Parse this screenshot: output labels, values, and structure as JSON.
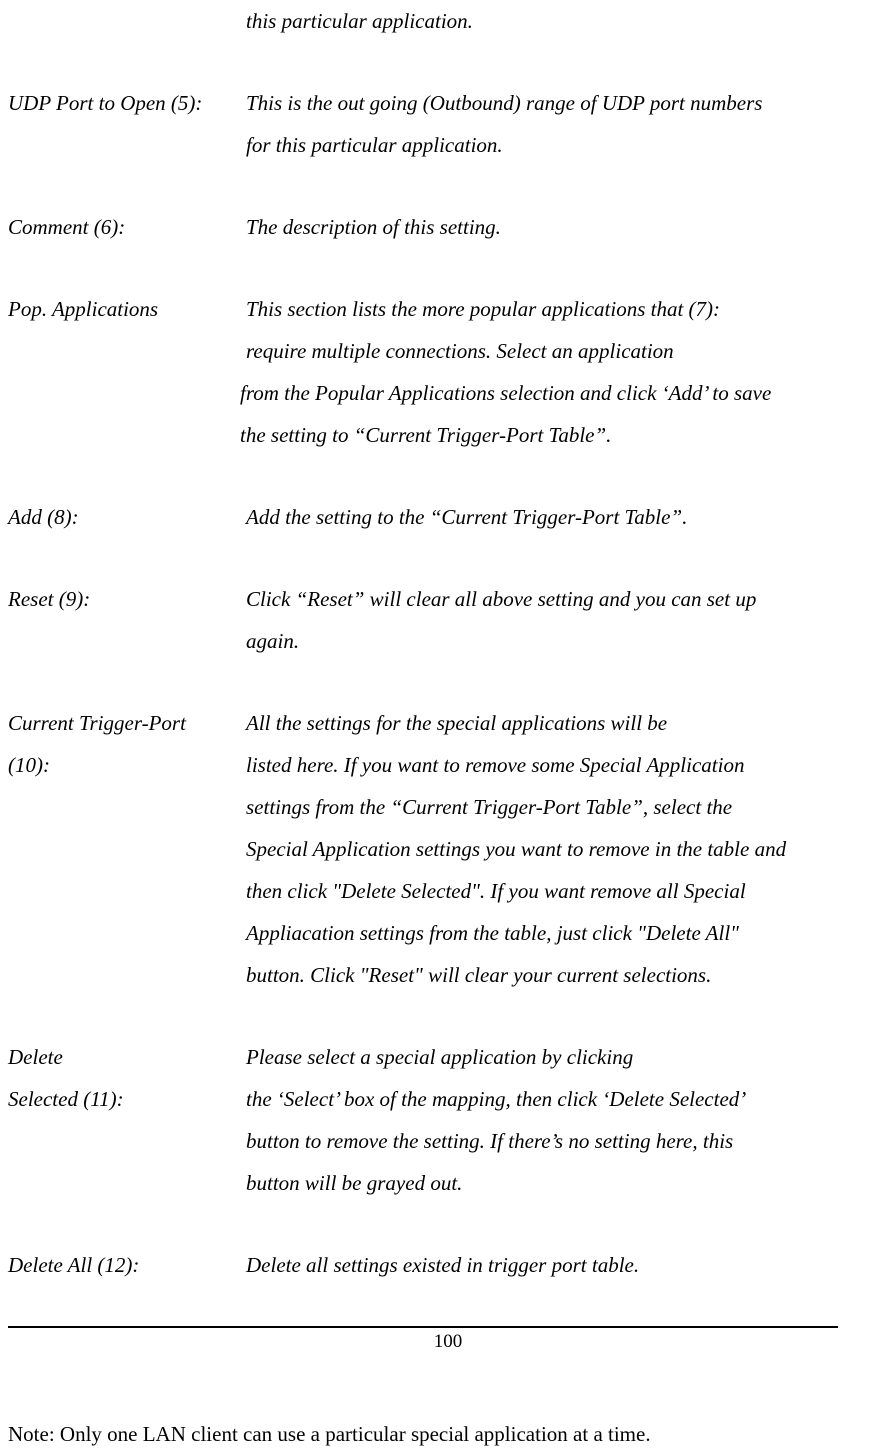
{
  "entries": [
    {
      "termLines": [
        ""
      ],
      "descLines": [
        {
          "text": "this particular application.",
          "cls": ""
        }
      ]
    },
    {
      "termLines": [
        "UDP Port to Open (5):"
      ],
      "descLines": [
        {
          "text": "This is the out going (Outbound) range of UDP port numbers",
          "cls": ""
        },
        {
          "text": "for this particular application.",
          "cls": ""
        }
      ]
    },
    {
      "termLines": [
        "Comment (6):"
      ],
      "descLines": [
        {
          "text": "The description of this setting.",
          "cls": ""
        }
      ]
    },
    {
      "termLines": [
        "Pop. Applications"
      ],
      "descLines": [
        {
          "text": "This section lists the more popular applications that (7):",
          "cls": ""
        },
        {
          "text": " require multiple connections. Select an application",
          "cls": ""
        },
        {
          "text": "from the Popular Applications selection and click ‘Add’ to save",
          "cls": "slight-left"
        },
        {
          "text": "the setting to “Current Trigger-Port Table”.",
          "cls": "slight-left"
        }
      ]
    },
    {
      "termLines": [
        "Add (8):"
      ],
      "descLines": [
        {
          "text": "Add the setting to the “Current Trigger-Port Table”.",
          "cls": ""
        }
      ]
    },
    {
      "termLines": [
        "Reset (9):"
      ],
      "descLines": [
        {
          "text": "Click “Reset” will clear all above setting and you can set up",
          "cls": ""
        },
        {
          "text": "again.",
          "cls": ""
        }
      ]
    },
    {
      "termLines": [
        "Current Trigger-Port",
        "(10):"
      ],
      "descLines": [
        {
          "text": "All the settings for the special applications will be",
          "cls": ""
        },
        {
          "text": "listed here. If you want to remove some Special Application",
          "cls": ""
        },
        {
          "text": "settings from the “Current Trigger-Port Table”, select the",
          "cls": ""
        },
        {
          "text": "Special Application settings you want to remove in the table and",
          "cls": ""
        },
        {
          "text": "then click \"Delete Selected\". If you want remove all Special",
          "cls": ""
        },
        {
          "text": "Appliacation settings from the table, just click \"Delete All\"",
          "cls": ""
        },
        {
          "text": "button. Click \"Reset\" will clear your current selections.",
          "cls": ""
        }
      ]
    },
    {
      "termLines": [
        "Delete",
        "Selected (11):"
      ],
      "descLines": [
        {
          "text": "Please select a special application by clicking",
          "cls": ""
        },
        {
          "text": "the ‘Select’ box of the mapping, then click ‘Delete Selected’",
          "cls": ""
        },
        {
          "text": "button to remove the setting. If there’s no setting here, this",
          "cls": ""
        },
        {
          "text": "button will be grayed out.",
          "cls": ""
        }
      ]
    },
    {
      "termLines": [
        "Delete All (12):"
      ],
      "descLines": [
        {
          "text": "Delete all settings existed in trigger port table.",
          "cls": ""
        }
      ]
    }
  ],
  "note": "Note: Only one LAN client can use a particular special application at a time.",
  "pageNumber": "100"
}
